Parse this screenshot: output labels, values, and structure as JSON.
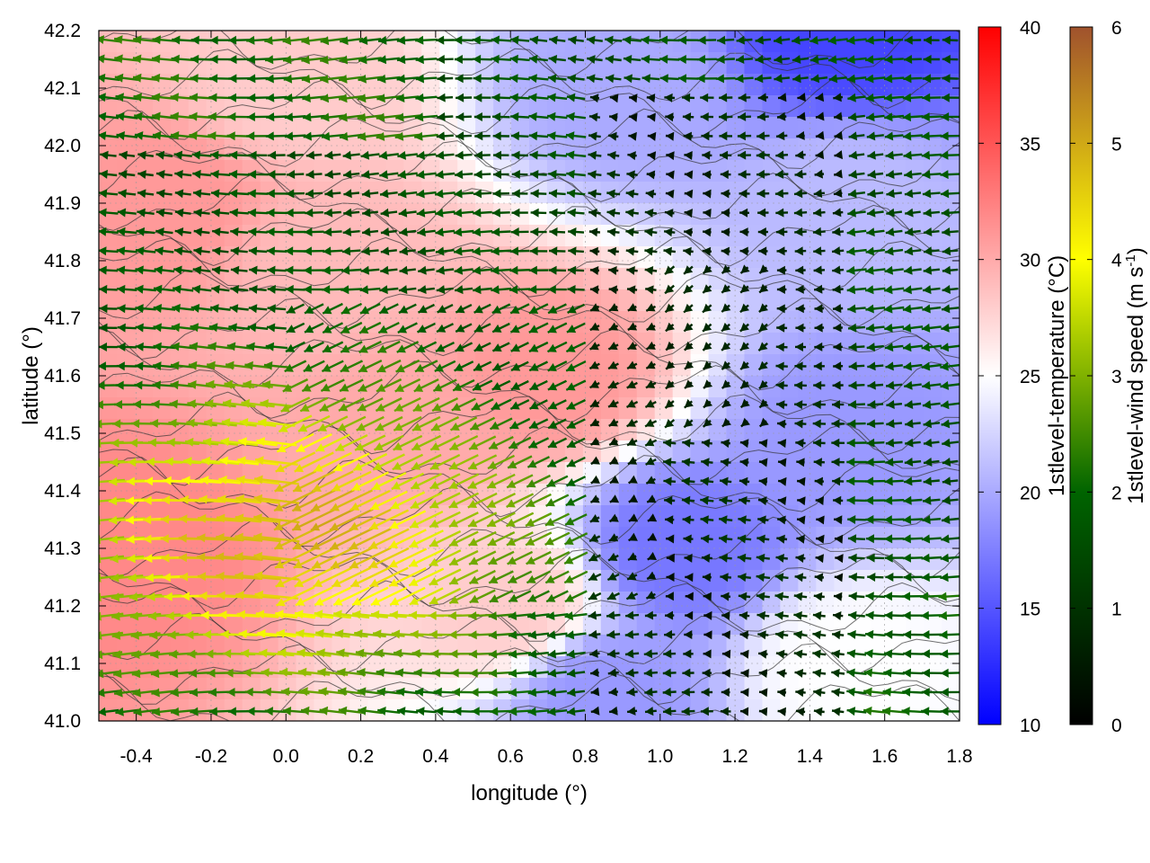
{
  "chart_data": {
    "type": "heatmap",
    "title": "",
    "xlabel": "longitude (°)",
    "ylabel": "latitude (°)",
    "xlim": [
      -0.5,
      1.8
    ],
    "ylim": [
      41.0,
      42.2
    ],
    "xticks": [
      "-0.4",
      "-0.2",
      "0.0",
      "0.2",
      "0.4",
      "0.6",
      "0.8",
      "1.0",
      "1.2",
      "1.4",
      "1.6",
      "1.8"
    ],
    "yticks": [
      "41.0",
      "41.1",
      "41.2",
      "41.3",
      "41.4",
      "41.5",
      "41.6",
      "41.7",
      "41.8",
      "41.9",
      "42.0",
      "42.1",
      "42.2"
    ],
    "grid": true,
    "colorbars": [
      {
        "label": "1stlevel-temperature (°C)",
        "range": [
          10,
          40
        ],
        "ticks": [
          "10",
          "15",
          "20",
          "25",
          "30",
          "35",
          "40"
        ],
        "colors": [
          "#0000ff",
          "#ffffff",
          "#ff0000"
        ]
      },
      {
        "label": "1stlevel-wind speed (m s-1)",
        "label_base": "1stlevel-wind speed (m s",
        "label_sup": "-1",
        "label_end": ")",
        "range": [
          0,
          6
        ],
        "ticks": [
          "0",
          "1",
          "2",
          "3",
          "4",
          "5",
          "6"
        ],
        "colors": [
          "#000000",
          "#006400",
          "#ffff00",
          "#a0522d"
        ]
      }
    ],
    "temperature_anchor_points": [
      {
        "x": -0.4,
        "y": 41.3,
        "t": 32
      },
      {
        "x": -0.3,
        "y": 41.9,
        "t": 31
      },
      {
        "x": 0.1,
        "y": 41.8,
        "t": 29
      },
      {
        "x": 0.3,
        "y": 41.5,
        "t": 30
      },
      {
        "x": 0.7,
        "y": 41.6,
        "t": 31
      },
      {
        "x": 0.6,
        "y": 41.2,
        "t": 28
      },
      {
        "x": 0.0,
        "y": 42.1,
        "t": 28
      },
      {
        "x": 0.9,
        "y": 42.1,
        "t": 20
      },
      {
        "x": 1.5,
        "y": 42.2,
        "t": 14
      },
      {
        "x": 1.05,
        "y": 41.3,
        "t": 17
      },
      {
        "x": 1.5,
        "y": 41.5,
        "t": 19
      },
      {
        "x": 1.5,
        "y": 41.9,
        "t": 21
      },
      {
        "x": 1.5,
        "y": 41.1,
        "t": 25
      },
      {
        "x": 0.85,
        "y": 41.05,
        "t": 19
      }
    ],
    "wind_pattern": {
      "direction": "westward, turning north-westward (upslope) over the central valley",
      "strongest_region": {
        "x": [
          -0.3,
          0.3
        ],
        "y": [
          41.25,
          41.4
        ],
        "speed": 5.0
      },
      "weakest_region": {
        "x": [
          0.8,
          1.5
        ],
        "y": [
          41.0,
          42.1
        ],
        "speed": 0.5
      }
    }
  }
}
